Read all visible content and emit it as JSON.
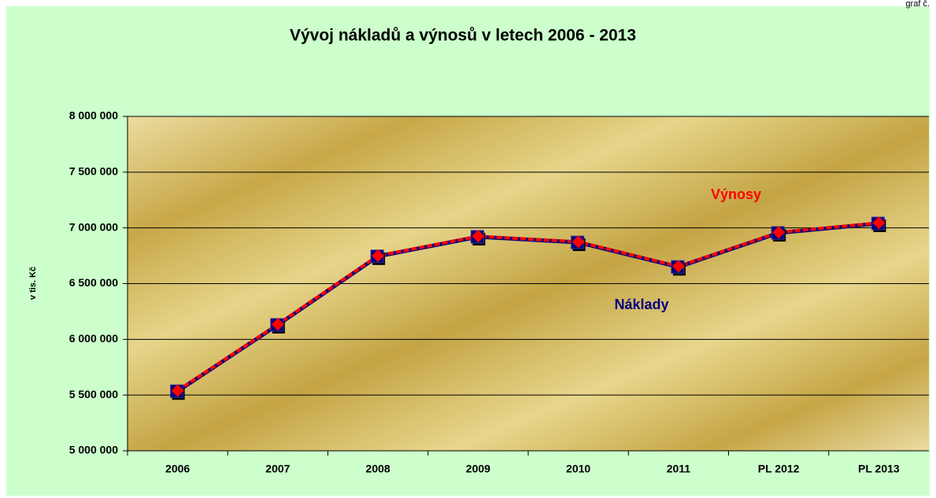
{
  "chart_data": {
    "type": "line",
    "title": "Vývoj nákladů a výnosů v letech 2006 - 2013",
    "corner_text": "graf č.",
    "y_label": "v tis. Kč",
    "categories": [
      "2006",
      "2007",
      "2008",
      "2009",
      "2010",
      "2011",
      "PL 2012",
      "PL 2013"
    ],
    "series": [
      {
        "name": "Náklady",
        "color": "#000080",
        "values": [
          5535000,
          6130000,
          6745000,
          6920000,
          6870000,
          6650000,
          6955000,
          7040000
        ]
      },
      {
        "name": "Výnosy",
        "color": "#ff0000",
        "values": [
          5540000,
          6135000,
          6750000,
          6925000,
          6875000,
          6655000,
          6960000,
          7045000
        ]
      }
    ],
    "ylim": [
      5000000,
      8000000
    ],
    "yticks": [
      {
        "value": 5000000,
        "label": "5 000 000"
      },
      {
        "value": 5500000,
        "label": "5 500 000"
      },
      {
        "value": 6000000,
        "label": "6 000 000"
      },
      {
        "value": 6500000,
        "label": "6 500 000"
      },
      {
        "value": 7000000,
        "label": "7 000 000"
      },
      {
        "value": 7500000,
        "label": "7 500 000"
      },
      {
        "value": 8000000,
        "label": "8 000 000"
      }
    ],
    "grid": true
  }
}
